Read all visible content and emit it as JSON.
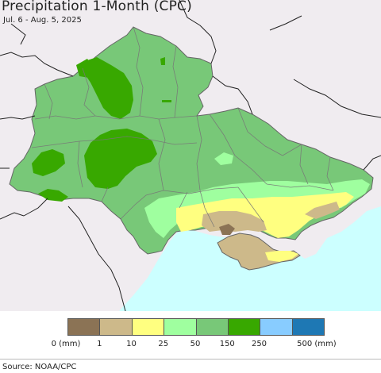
{
  "map": {
    "title": "Precipitation 1-Month (CPC)",
    "date_range": "Jul. 6 - Aug. 5, 2025",
    "colors": {
      "sea": "#ccffff",
      "outside_land": "#f0ecf0",
      "class_0_1": "#8b7355",
      "class_1_10": "#cdb98a",
      "class_10_25": "#ffff80",
      "class_25_50": "#9fff9f",
      "class_50_150": "#78c878",
      "class_150_250": "#38a800",
      "class_250_500": "#88ccff",
      "class_500_plus": "#1e78b4"
    }
  },
  "legend": {
    "swatches": [
      "#8b7355",
      "#cdb98a",
      "#ffff80",
      "#9fff9f",
      "#78c878",
      "#38a800",
      "#88ccff",
      "#1e78b4"
    ],
    "labels": [
      "0 (mm)",
      "1",
      "10",
      "25",
      "50",
      "150",
      "250",
      "500 (mm)"
    ]
  },
  "source": "Source: NOAA/CPC"
}
